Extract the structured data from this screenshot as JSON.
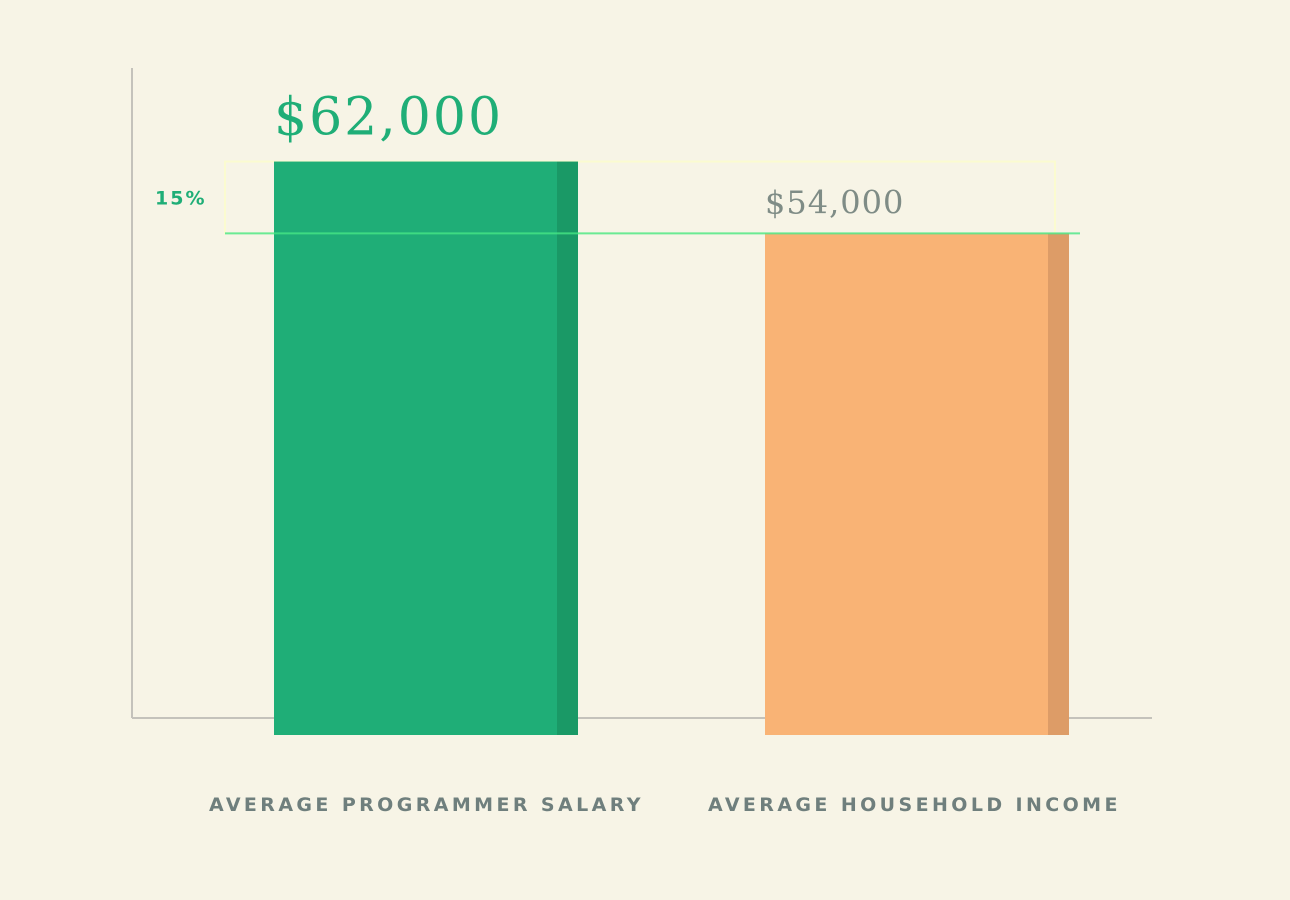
{
  "chart_data": {
    "type": "bar",
    "categories": [
      "AVERAGE PROGRAMMER SALARY",
      "AVERAGE HOUSEHOLD INCOME"
    ],
    "values": [
      62000,
      54000
    ],
    "value_labels": [
      "$62,000",
      "$54,000"
    ],
    "difference_label": "15%",
    "ylim": [
      0,
      80000
    ],
    "grid": false,
    "colors": {
      "background": "#f7f4e6",
      "axis": "#c4c2bb",
      "bar_primary": "#1fae77",
      "bar_primary_shade": "#1a9966",
      "bar_secondary": "#f9b375",
      "bar_secondary_shade": "#dd9c67",
      "value_primary": "#1fae77",
      "value_secondary": "#7f8c86",
      "category_text": "#6f7f7d",
      "difference_text": "#1fae77",
      "highlight_line": "#46e685",
      "highlight_box": "#fbfbd0"
    }
  }
}
